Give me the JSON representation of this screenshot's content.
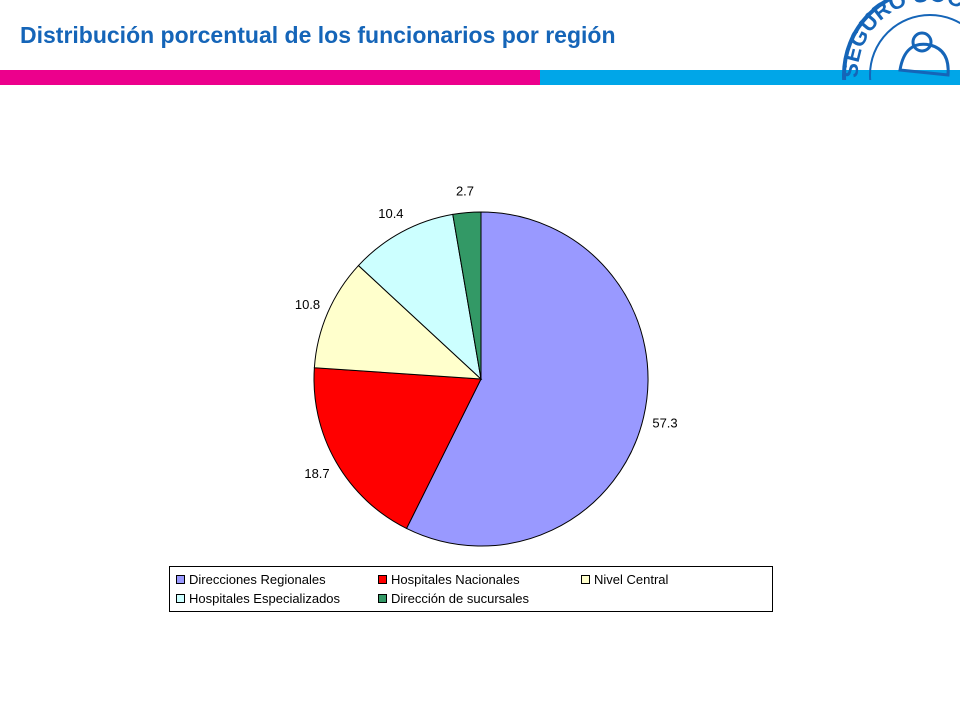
{
  "slide": {
    "title": "Distribución porcentual de los funcionarios por región",
    "colors": {
      "title": "#1565b8",
      "bar_left": "#ec008c",
      "bar_right": "#00a6e8",
      "logo": "#1565b8"
    }
  },
  "logo": {
    "text": "SEGURO SOCIAL"
  },
  "chart_data": {
    "type": "pie",
    "title": "",
    "categories": [
      "Direcciones Regionales",
      "Hospitales Nacionales",
      "Nivel Central",
      "Hospitales Especializados",
      "Dirección de sucursales"
    ],
    "values": [
      57.3,
      18.7,
      10.8,
      10.4,
      2.7
    ],
    "data_labels": [
      "57.3",
      "18.7",
      "10.8",
      "10.4",
      "2.7"
    ],
    "colors": [
      "#9999ff",
      "#ff0000",
      "#ffffcc",
      "#ccffff",
      "#339966"
    ],
    "start_angle": "12 o'clock",
    "direction": "clockwise",
    "legend": {
      "position": "bottom",
      "rows": [
        [
          0,
          1,
          2
        ],
        [
          3,
          4
        ]
      ]
    }
  }
}
